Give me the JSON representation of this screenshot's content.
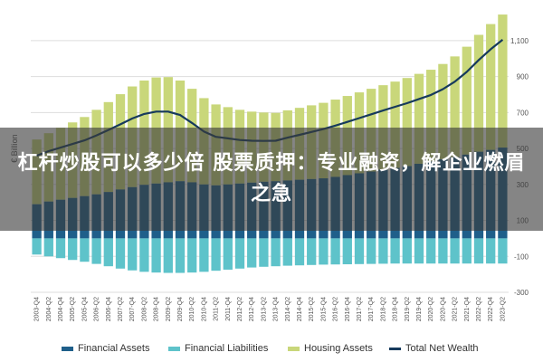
{
  "banner": {
    "text": "杠杆炒股可以多少倍 股票质押：专业融资，解企业燃眉之急"
  },
  "colors": {
    "financial_assets": "#1f5f8a",
    "financial_liabilities": "#5ec3ca",
    "housing_assets": "#c9d77a",
    "total_net_wealth": "#163a5c",
    "grid": "#dddddd",
    "axis_text": "#555555"
  },
  "chart_data": {
    "type": "bar",
    "ylabel": "€ Billion",
    "ylim": [
      -300,
      1200
    ],
    "yticks": [
      -300,
      -100,
      100,
      300,
      500,
      700,
      900,
      1100
    ],
    "ytick_labels": [
      "-300",
      "-100",
      "100",
      "300",
      "500",
      "700",
      "900",
      "1,100"
    ],
    "grid": true,
    "legend_position": "bottom",
    "categories": [
      "2003-Q4",
      "2004-Q2",
      "2004-Q4",
      "2005-Q2",
      "2005-Q4",
      "2006-Q2",
      "2006-Q4",
      "2007-Q2",
      "2007-Q4",
      "2008-Q2",
      "2008-Q4",
      "2009-Q2",
      "2009-Q4",
      "2010-Q2",
      "2010-Q4",
      "2011-Q2",
      "2011-Q4",
      "2012-Q2",
      "2012-Q4",
      "2013-Q2",
      "2013-Q4",
      "2014-Q2",
      "2014-Q4",
      "2015-Q2",
      "2015-Q4",
      "2016-Q2",
      "2016-Q4",
      "2017-Q2",
      "2017-Q4",
      "2018-Q2",
      "2018-Q4",
      "2019-Q2",
      "2019-Q4",
      "2020-Q2",
      "2020-Q4",
      "2021-Q2",
      "2021-Q4",
      "2022-Q2",
      "2022-Q4",
      "2023-Q2"
    ],
    "series": [
      {
        "name": "Financial Assets",
        "kind": "bar",
        "values": [
          190,
          205,
          215,
          225,
          235,
          245,
          258,
          272,
          285,
          298,
          305,
          312,
          318,
          312,
          300,
          295,
          300,
          305,
          310,
          315,
          318,
          322,
          326,
          330,
          334,
          342,
          352,
          362,
          372,
          382,
          392,
          402,
          415,
          428,
          440,
          452,
          466,
          482,
          492,
          505
        ]
      },
      {
        "name": "Financial Liabilities",
        "kind": "bar",
        "values": [
          -90,
          -100,
          -110,
          -120,
          -130,
          -142,
          -155,
          -168,
          -178,
          -186,
          -190,
          -192,
          -192,
          -190,
          -186,
          -180,
          -174,
          -168,
          -162,
          -158,
          -155,
          -152,
          -150,
          -148,
          -146,
          -145,
          -144,
          -143,
          -142,
          -141,
          -140,
          -140,
          -140,
          -140,
          -140,
          -140,
          -140,
          -140,
          -140,
          -140
        ]
      },
      {
        "name": "Housing Assets",
        "kind": "bar",
        "values": [
          360,
          380,
          400,
          420,
          440,
          470,
          500,
          530,
          560,
          580,
          590,
          585,
          560,
          520,
          480,
          450,
          430,
          410,
          395,
          385,
          380,
          390,
          400,
          410,
          420,
          430,
          440,
          450,
          460,
          470,
          480,
          490,
          500,
          510,
          530,
          560,
          600,
          650,
          700,
          740
        ]
      },
      {
        "name": "Total Net Wealth",
        "kind": "line",
        "values": [
          460,
          485,
          505,
          525,
          545,
          573,
          603,
          634,
          667,
          692,
          705,
          705,
          686,
          642,
          594,
          565,
          556,
          547,
          543,
          542,
          543,
          560,
          576,
          592,
          608,
          627,
          648,
          669,
          690,
          711,
          732,
          752,
          775,
          798,
          830,
          872,
          926,
          992,
          1052,
          1105
        ]
      }
    ]
  },
  "legend": [
    {
      "label": "Financial Assets",
      "type": "box"
    },
    {
      "label": "Financial Liabilities",
      "type": "box"
    },
    {
      "label": "Housing Assets",
      "type": "box"
    },
    {
      "label": "Total Net Wealth",
      "type": "line"
    }
  ]
}
